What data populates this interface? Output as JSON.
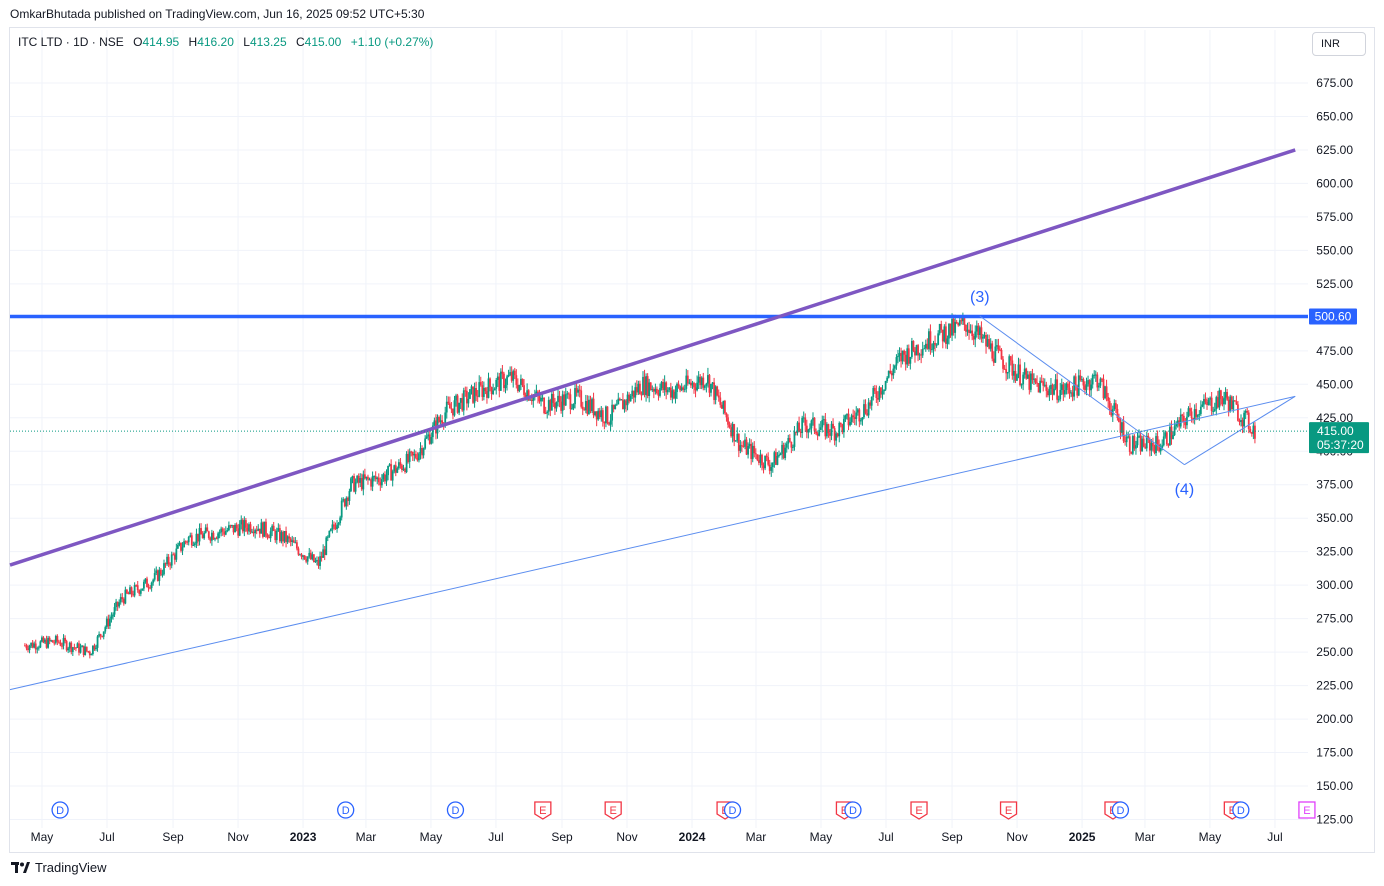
{
  "header": {
    "published_line": "OmkarBhutada published on TradingView.com, Jun 16, 2025 09:52 UTC+5:30"
  },
  "legend": {
    "symbol": "ITC LTD · 1D · NSE",
    "open_label": "O",
    "open": "414.95",
    "high_label": "H",
    "high": "416.20",
    "low_label": "L",
    "low": "413.25",
    "close_label": "C",
    "close": "415.00",
    "change": "+1.10 (+0.27%)"
  },
  "currency_button": {
    "label": "INR"
  },
  "price_scale": {
    "labels": [
      "675.00",
      "650.00",
      "625.00",
      "600.00",
      "575.00",
      "550.00",
      "525.00",
      "500.00",
      "475.00",
      "450.00",
      "425.00",
      "400.00",
      "375.00",
      "350.00",
      "325.00",
      "300.00",
      "275.00",
      "250.00",
      "225.00",
      "200.00",
      "175.00",
      "150.00",
      "125.00"
    ],
    "resistance_label": "500.60",
    "current_price_label": "415.00",
    "countdown_label": "05:37:20"
  },
  "time_axis": {
    "labels": [
      "May",
      "Jul",
      "Sep",
      "Nov",
      "2023",
      "Mar",
      "May",
      "Jul",
      "Sep",
      "Nov",
      "2024",
      "Mar",
      "May",
      "Jul",
      "Sep",
      "Nov",
      "2025",
      "Mar",
      "May",
      "Jul"
    ],
    "bold": [
      "2023",
      "2024",
      "2025"
    ]
  },
  "annotations": {
    "wave3": "(3)",
    "wave4": "(4)"
  },
  "events": {
    "dividend_glyph": "D",
    "earnings_glyph": "E"
  },
  "colors": {
    "up": "#089981",
    "down": "#f23645",
    "resistance": "#2962ff",
    "channel_upper": "#7e57c2",
    "channel_lower": "#5b8def",
    "current_price": "#089981",
    "annotation": "#2962ff",
    "earnings": "#f23645",
    "earnings_future": "#e040fb",
    "dividend": "#2962ff"
  },
  "footer": {
    "brand": "TradingView"
  },
  "chart_data": {
    "type": "candlestick",
    "symbol": "ITC LTD",
    "interval": "1D",
    "exchange": "NSE",
    "ylim": [
      125,
      690
    ],
    "y_scale": "linear",
    "x_range": [
      "2022-04-01",
      "2025-08-01"
    ],
    "grid": true,
    "close_series_approx": {
      "x": [
        "2022-04-15",
        "2022-05-15",
        "2022-06-15",
        "2022-07-15",
        "2022-08-15",
        "2022-09-15",
        "2022-10-15",
        "2022-11-15",
        "2022-12-15",
        "2023-01-15",
        "2023-02-15",
        "2023-03-15",
        "2023-04-15",
        "2023-05-15",
        "2023-06-15",
        "2023-07-15",
        "2023-08-15",
        "2023-09-15",
        "2023-10-15",
        "2023-11-15",
        "2023-12-15",
        "2024-01-15",
        "2024-02-15",
        "2024-03-15",
        "2024-04-15",
        "2024-05-15",
        "2024-06-15",
        "2024-07-15",
        "2024-08-15",
        "2024-09-15",
        "2024-10-15",
        "2024-11-15",
        "2024-12-15",
        "2025-01-15",
        "2025-02-15",
        "2025-03-15",
        "2025-04-15",
        "2025-05-15",
        "2025-06-13"
      ],
      "y": [
        255,
        258,
        250,
        290,
        305,
        335,
        340,
        345,
        335,
        315,
        375,
        380,
        395,
        430,
        445,
        455,
        435,
        440,
        425,
        450,
        445,
        455,
        405,
        390,
        420,
        415,
        435,
        470,
        485,
        495,
        470,
        450,
        445,
        455,
        405,
        405,
        430,
        440,
        415
      ]
    },
    "resistance_level": 500.6,
    "last_price": 415.0,
    "channel_upper": {
      "x": [
        "2022-04-01",
        "2025-07-20"
      ],
      "y": [
        315,
        625
      ]
    },
    "channel_lower": {
      "x": [
        "2022-04-01",
        "2025-07-20"
      ],
      "y": [
        222,
        441
      ]
    },
    "wave_lines": [
      {
        "x": [
          "2024-09-27",
          "2025-04-07"
        ],
        "y": [
          501,
          390
        ]
      },
      {
        "x": [
          "2025-04-07",
          "2025-07-20"
        ],
        "y": [
          390,
          441
        ]
      }
    ],
    "wave_labels": [
      {
        "text": "(3)",
        "x": "2024-09-27",
        "y": 501
      },
      {
        "text": "(4)",
        "x": "2025-04-07",
        "y": 390
      }
    ],
    "events": [
      {
        "type": "D",
        "x": "2022-05-18"
      },
      {
        "type": "D",
        "x": "2023-02-10"
      },
      {
        "type": "D",
        "x": "2023-05-24"
      },
      {
        "type": "E",
        "x": "2023-08-14"
      },
      {
        "type": "E",
        "x": "2023-10-19"
      },
      {
        "type": "E",
        "x": "2024-02-01"
      },
      {
        "type": "D",
        "x": "2024-02-08"
      },
      {
        "type": "E",
        "x": "2024-05-23"
      },
      {
        "type": "D",
        "x": "2024-05-31"
      },
      {
        "type": "E",
        "x": "2024-08-01"
      },
      {
        "type": "E",
        "x": "2024-10-24"
      },
      {
        "type": "E",
        "x": "2025-01-30"
      },
      {
        "type": "D",
        "x": "2025-02-06"
      },
      {
        "type": "E",
        "x": "2025-05-22"
      },
      {
        "type": "D",
        "x": "2025-05-30"
      },
      {
        "type": "E",
        "x": "2025-07-31",
        "future": true
      }
    ]
  }
}
